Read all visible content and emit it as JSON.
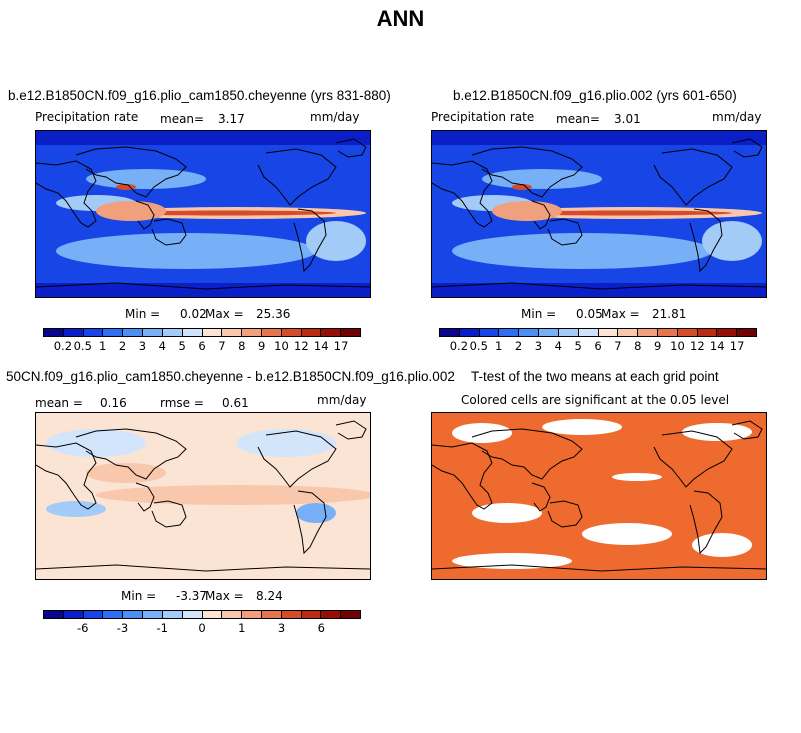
{
  "title": "ANN",
  "panels": {
    "tl": {
      "case": "b.e12.B1850CN.f09_g16.plio_cam1850.cheyenne (yrs 831-880)",
      "variable": "Precipitation rate",
      "mean_label": "mean=",
      "mean_value": "3.17",
      "units": "mm/day",
      "min_label": "Min =",
      "min_value": "0.02",
      "max_label": "Max =",
      "max_value": "25.36"
    },
    "tr": {
      "case": "b.e12.B1850CN.f09_g16.plio.002 (yrs 601-650)",
      "variable": "Precipitation rate",
      "mean_label": "mean=",
      "mean_value": "3.01",
      "units": "mm/day",
      "min_label": "Min =",
      "min_value": "0.05",
      "max_label": "Max =",
      "max_value": "21.81"
    },
    "bl": {
      "case": "50CN.f09_g16.plio_cam1850.cheyenne - b.e12.B1850CN.f09_g16.plio.002",
      "mean_label": "mean =",
      "mean_value": "0.16",
      "rmse_label": "rmse =",
      "rmse_value": "0.61",
      "units": "mm/day",
      "min_label": "Min =",
      "min_value": "-3.37",
      "max_label": "Max =",
      "max_value": "8.24"
    },
    "br": {
      "title": "T-test of the two means at each grid point",
      "subtitle": "Colored cells are significant at the 0.05 level"
    }
  },
  "colorbars": {
    "precip": {
      "colors": [
        "#08068c",
        "#0b1fc9",
        "#1745e6",
        "#2f6df2",
        "#4c8ff5",
        "#78b0f7",
        "#a3cbf8",
        "#cfe2fa",
        "#fbe4d4",
        "#f8c7ac",
        "#f1a07e",
        "#e7764f",
        "#d64c2a",
        "#bb2a13",
        "#960e05",
        "#6f0202"
      ],
      "ticks": [
        "0.2",
        "0.5",
        "1",
        "2",
        "3",
        "4",
        "5",
        "6",
        "7",
        "8",
        "9",
        "10",
        "12",
        "14",
        "17"
      ]
    },
    "diff": {
      "colors": [
        "#08068c",
        "#0b1fc9",
        "#1745e6",
        "#2f6df2",
        "#4c8ff5",
        "#78b0f7",
        "#a3cbf8",
        "#d3e5fb",
        "#fbe4d4",
        "#f8c7ac",
        "#f1a07e",
        "#e7764f",
        "#d64c2a",
        "#bb2a13",
        "#960e05",
        "#6f0202"
      ],
      "ticks": [
        "-6",
        "-3",
        "-1",
        "0",
        "1",
        "3",
        "6"
      ],
      "tick_index": [
        2,
        4,
        6,
        8,
        10,
        12,
        14
      ]
    }
  },
  "colors": {
    "ocean_wet": "#1f4fe0",
    "dry": "#cfe0f8",
    "itcz": "#d8532e",
    "ttest_fill": "#ee6a2f"
  }
}
